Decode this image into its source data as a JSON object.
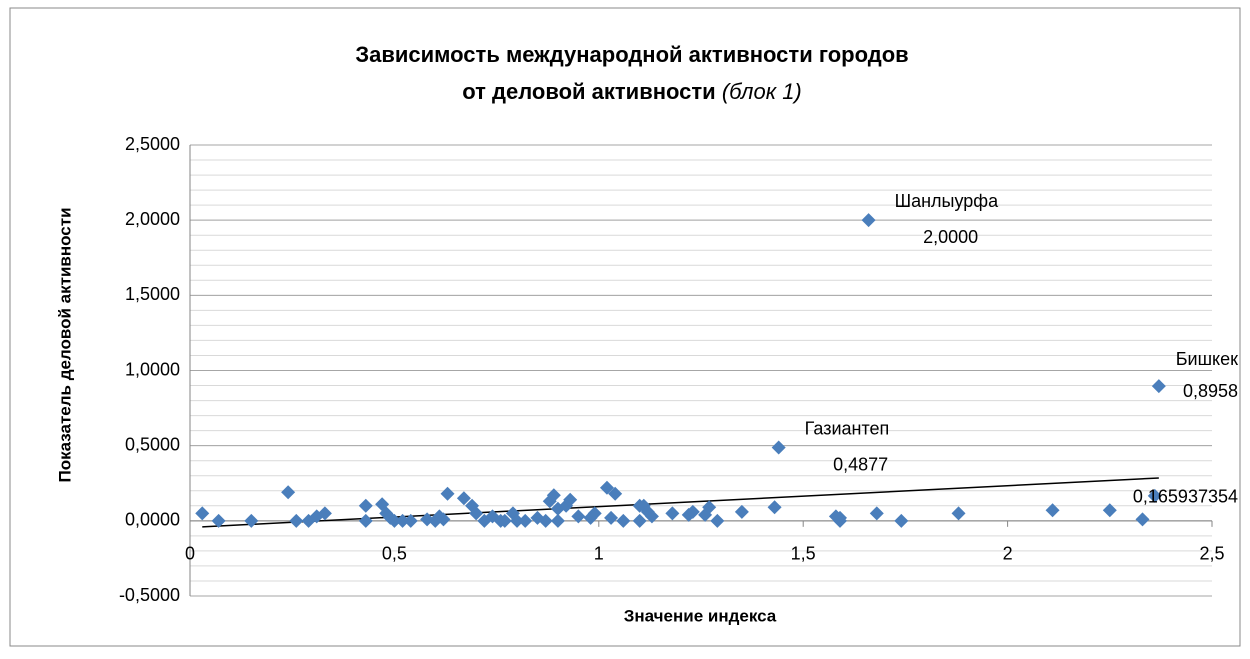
{
  "chart_data": {
    "type": "scatter",
    "title": [
      "Зависимость международной активности городов",
      "от деловой активности"
    ],
    "title_note": "(блок 1)",
    "x_label": "Значение индекса",
    "y_label": "Показатель деловой активности",
    "color": "#4a7ebb",
    "grid": true,
    "yminor": 0.1,
    "xlim": [
      0,
      2.5
    ],
    "ylim": [
      -0.5,
      2.5
    ],
    "xticks": [
      0,
      {
        "value": 0.5,
        "label": "0,5"
      },
      1,
      {
        "value": 1.5,
        "label": "1,5"
      },
      2,
      {
        "value": 2.5,
        "label": "2,5"
      }
    ],
    "yticks": [
      {
        "value": -0.5,
        "label": "-0,5000"
      },
      {
        "value": 0,
        "label": "0,0000"
      },
      {
        "value": 0.5,
        "label": "0,5000"
      },
      {
        "value": 1,
        "label": "1,0000"
      },
      {
        "value": 1.5,
        "label": "1,5000"
      },
      {
        "value": 2,
        "label": "2,0000"
      },
      {
        "value": 2.5,
        "label": "2,5000"
      }
    ],
    "trendline": {
      "x": [
        0.03,
        2.37
      ],
      "y": [
        -0.04,
        0.285
      ]
    },
    "x": [
      0.03,
      0.07,
      0.15,
      0.24,
      0.26,
      0.29,
      0.31,
      0.33,
      0.43,
      0.43,
      0.47,
      0.48,
      0.49,
      0.5,
      0.52,
      0.54,
      0.58,
      0.6,
      0.61,
      0.62,
      0.63,
      0.67,
      0.69,
      0.7,
      0.72,
      0.74,
      0.76,
      0.77,
      0.79,
      0.8,
      0.82,
      0.85,
      0.87,
      0.88,
      0.89,
      0.9,
      0.9,
      0.92,
      0.93,
      0.95,
      0.98,
      0.99,
      1.02,
      1.03,
      1.04,
      1.06,
      1.1,
      1.1,
      1.11,
      1.12,
      1.13,
      1.18,
      1.22,
      1.23,
      1.26,
      1.27,
      1.29,
      1.35,
      1.43,
      1.44,
      1.58,
      1.59,
      1.59,
      1.66,
      1.68,
      1.74,
      1.88,
      2.11,
      2.25,
      2.33,
      2.36,
      2.37
    ],
    "values": [
      0.05,
      0.0,
      0.0,
      0.19,
      0.0,
      0.0,
      0.03,
      0.05,
      0.1,
      0.0,
      0.11,
      0.05,
      0.02,
      0.0,
      0.0,
      0.0,
      0.01,
      0.0,
      0.03,
      0.01,
      0.18,
      0.15,
      0.1,
      0.05,
      0.0,
      0.03,
      0.0,
      0.0,
      0.05,
      0.0,
      0.0,
      0.02,
      0.0,
      0.13,
      0.17,
      0.0,
      0.08,
      0.1,
      0.14,
      0.03,
      0.02,
      0.05,
      0.22,
      0.02,
      0.18,
      0.0,
      0.1,
      0.0,
      0.1,
      0.06,
      0.03,
      0.05,
      0.04,
      0.06,
      0.04,
      0.09,
      0.0,
      0.06,
      0.09,
      0.4877,
      0.03,
      0.0,
      0.02,
      2.0,
      0.05,
      0.0,
      0.05,
      0.07,
      0.07,
      0.01,
      0.165937354,
      0.8958
    ],
    "point_names": [
      null,
      null,
      null,
      null,
      null,
      null,
      null,
      null,
      null,
      null,
      null,
      null,
      null,
      null,
      null,
      null,
      null,
      null,
      null,
      null,
      null,
      null,
      null,
      null,
      null,
      null,
      null,
      null,
      null,
      null,
      null,
      null,
      null,
      null,
      null,
      null,
      null,
      null,
      null,
      null,
      null,
      null,
      null,
      null,
      null,
      null,
      null,
      null,
      null,
      null,
      null,
      null,
      null,
      null,
      null,
      null,
      null,
      null,
      null,
      "Газиантеп",
      null,
      null,
      null,
      "Шанлыурфа",
      null,
      null,
      null,
      null,
      null,
      null,
      null,
      "Бишкек"
    ],
    "value_labels": [
      null,
      null,
      null,
      null,
      null,
      null,
      null,
      null,
      null,
      null,
      null,
      null,
      null,
      null,
      null,
      null,
      null,
      null,
      null,
      null,
      null,
      null,
      null,
      null,
      null,
      null,
      null,
      null,
      null,
      null,
      null,
      null,
      null,
      null,
      null,
      null,
      null,
      null,
      null,
      null,
      null,
      null,
      null,
      null,
      null,
      null,
      null,
      null,
      null,
      null,
      null,
      null,
      null,
      null,
      null,
      null,
      null,
      null,
      null,
      "0,4877",
      null,
      null,
      null,
      "2,0000",
      null,
      null,
      null,
      null,
      null,
      null,
      "0,165937354",
      "0,8958"
    ]
  }
}
